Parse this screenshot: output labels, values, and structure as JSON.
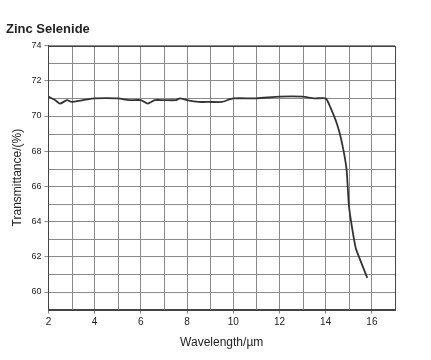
{
  "chart_data": {
    "type": "line",
    "title": "Zinc Selenide",
    "x_label": "Wavelength/µm",
    "y_label": "Transmittance/(%)",
    "x": [
      2,
      2.3,
      2.5,
      2.8,
      3,
      3.5,
      4,
      5,
      5.5,
      6,
      6.3,
      6.6,
      7,
      7.5,
      7.7,
      8,
      8.5,
      9,
      9.5,
      10,
      11,
      12,
      13,
      13.5,
      14,
      14.2,
      14.5,
      14.7,
      14.9,
      15.0,
      15.1,
      15.3,
      15.5,
      15.8
    ],
    "series": [
      {
        "name": "Zinc Selenide",
        "color": "#333333",
        "values": [
          71.1,
          70.9,
          70.7,
          70.9,
          70.8,
          70.9,
          71.0,
          71.0,
          70.9,
          70.9,
          70.7,
          70.9,
          70.9,
          70.9,
          71.0,
          70.9,
          70.8,
          70.8,
          70.8,
          71.0,
          71.0,
          71.1,
          71.1,
          71.0,
          71.0,
          70.5,
          69.5,
          68.5,
          67.0,
          65.0,
          64.0,
          62.5,
          61.8,
          60.8
        ]
      }
    ],
    "xlim": [
      2,
      17
    ],
    "xticks": [
      2,
      4,
      6,
      8,
      10,
      12,
      14,
      16
    ],
    "ylim": [
      59,
      74
    ],
    "yticks": [
      60,
      62,
      64,
      66,
      68,
      70,
      72,
      74
    ],
    "grid": true
  }
}
